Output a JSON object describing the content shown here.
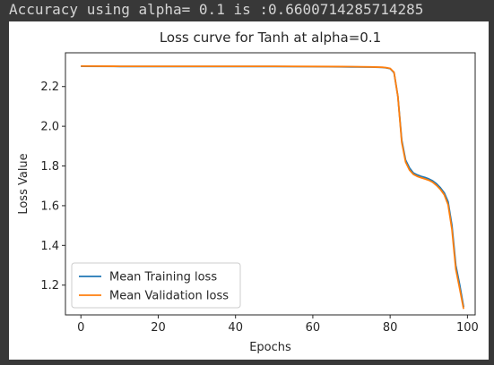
{
  "output_text": "Accuracy using alpha= 0.1 is :0.6600714285714285",
  "chart_data": {
    "type": "line",
    "title": "Loss curve for Tanh at alpha=0.1",
    "xlabel": "Epochs",
    "ylabel": "Loss Value",
    "xlim": [
      -4,
      102
    ],
    "ylim": [
      1.05,
      2.37
    ],
    "xticks": [
      0,
      20,
      40,
      60,
      80,
      100
    ],
    "yticks": [
      1.2,
      1.4,
      1.6,
      1.8,
      2.0,
      2.2
    ],
    "ytick_labels": [
      "1.2",
      "1.4",
      "1.6",
      "1.8",
      "2.0",
      "2.2"
    ],
    "grid": false,
    "legend_position": "lower-left",
    "series": [
      {
        "name": "Mean Training loss",
        "color": "#1f77b4",
        "x": [
          0,
          10,
          20,
          30,
          40,
          50,
          60,
          70,
          75,
          78,
          79,
          80,
          81,
          82,
          83,
          84,
          85,
          86,
          87,
          88,
          89,
          90,
          91,
          92,
          93,
          94,
          95,
          96,
          97,
          98,
          99
        ],
        "values": [
          2.302,
          2.301,
          2.301,
          2.301,
          2.301,
          2.301,
          2.3,
          2.299,
          2.298,
          2.296,
          2.294,
          2.29,
          2.27,
          2.15,
          1.93,
          1.83,
          1.79,
          1.765,
          1.755,
          1.748,
          1.742,
          1.735,
          1.725,
          1.71,
          1.69,
          1.665,
          1.62,
          1.5,
          1.3,
          1.2,
          1.09
        ]
      },
      {
        "name": "Mean Validation loss",
        "color": "#ff7f0e",
        "x": [
          0,
          10,
          20,
          30,
          40,
          50,
          60,
          70,
          75,
          78,
          79,
          80,
          81,
          82,
          83,
          84,
          85,
          86,
          87,
          88,
          89,
          90,
          91,
          92,
          93,
          94,
          95,
          96,
          97,
          98,
          99
        ],
        "values": [
          2.303,
          2.302,
          2.302,
          2.302,
          2.302,
          2.302,
          2.301,
          2.3,
          2.299,
          2.297,
          2.295,
          2.291,
          2.272,
          2.15,
          1.92,
          1.82,
          1.78,
          1.758,
          1.748,
          1.741,
          1.735,
          1.728,
          1.718,
          1.702,
          1.682,
          1.655,
          1.605,
          1.48,
          1.28,
          1.18,
          1.08
        ]
      }
    ]
  }
}
